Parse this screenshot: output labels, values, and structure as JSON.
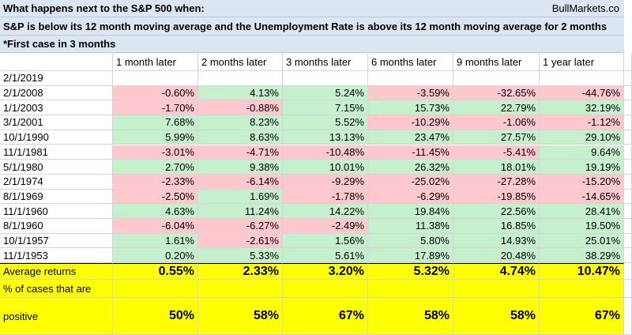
{
  "header": {
    "title": "What happens next to the S&P 500 when:",
    "source": "BullMarkets.co",
    "condition": "S&P is below its 12 month moving average and the Unemployment Rate is above its 12 month moving average for 2 months",
    "note": "*First case in 3 months"
  },
  "table": {
    "columns": [
      "1 month later",
      "2 months later",
      "3 months later",
      "6 months later",
      "9 months later",
      "1 year later"
    ],
    "rows": [
      [
        "2/1/2019"
      ],
      [
        "2/1/2008",
        "-0.60%",
        "4.13%",
        "5.24%",
        "-3.59%",
        "-32.65%",
        "-44.76%"
      ],
      [
        "1/1/2003",
        "-1.70%",
        "-0.88%",
        "7.15%",
        "15.73%",
        "22.79%",
        "32.19%"
      ],
      [
        "3/1/2001",
        "7.68%",
        "8.23%",
        "5.52%",
        "-10.29%",
        "-1.06%",
        "-1.12%"
      ],
      [
        "10/1/1990",
        "5.99%",
        "8.63%",
        "13.13%",
        "23.47%",
        "27.57%",
        "29.10%"
      ],
      [
        "11/1/1981",
        "-3.01%",
        "-4.71%",
        "-10.48%",
        "-11.45%",
        "-5.41%",
        "9.64%"
      ],
      [
        "5/1/1980",
        "2.70%",
        "9.38%",
        "10.01%",
        "26.32%",
        "18.01%",
        "19.19%"
      ],
      [
        "2/1/1974",
        "-2.33%",
        "-6.14%",
        "-9.29%",
        "-25.02%",
        "-27.28%",
        "-15.20%"
      ],
      [
        "8/1/1969",
        "-2.50%",
        "1.69%",
        "-1.78%",
        "-6.29%",
        "-19.85%",
        "-14.65%"
      ],
      [
        "11/1/1960",
        "4.63%",
        "11.24%",
        "14.22%",
        "19.84%",
        "22.56%",
        "28.41%"
      ],
      [
        "8/1/1960",
        "-6.04%",
        "-6.27%",
        "-2.49%",
        "11.38%",
        "16.85%",
        "19.50%"
      ],
      [
        "10/1/1957",
        "1.61%",
        "-2.61%",
        "1.56%",
        "5.80%",
        "14.93%",
        "25.01%"
      ],
      [
        "11/1/1953",
        "0.20%",
        "5.33%",
        "5.61%",
        "17.89%",
        "20.48%",
        "38.29%"
      ]
    ],
    "summary": [
      {
        "label": "Average returns",
        "values": [
          "0.55%",
          "2.33%",
          "3.20%",
          "5.32%",
          "4.74%",
          "10.47%"
        ]
      },
      {
        "label": [
          "% of cases that are",
          "positive"
        ],
        "values": [
          "50%",
          "58%",
          "67%",
          "58%",
          "58%",
          "67%"
        ]
      }
    ]
  }
}
